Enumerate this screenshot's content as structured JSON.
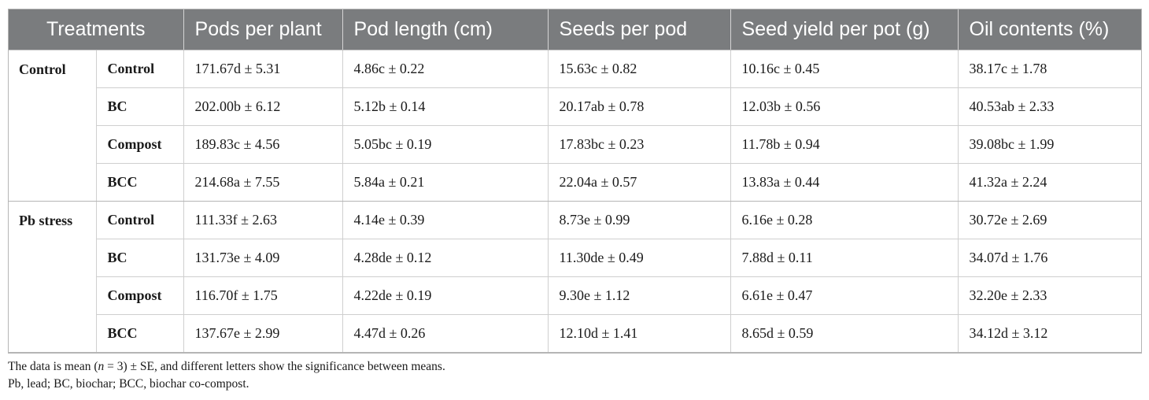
{
  "table": {
    "headers": {
      "treatments": "Treatments",
      "pods_per_plant": "Pods per plant",
      "pod_length": "Pod length (cm)",
      "seeds_per_pod": "Seeds per pod",
      "seed_yield": "Seed yield per pot (g)",
      "oil_contents": "Oil contents (%)"
    },
    "groups": [
      {
        "label": "Control",
        "rows": [
          {
            "treatment": "Control",
            "pods": "171.67d ± 5.31",
            "length": "4.86c ± 0.22",
            "seeds": "15.63c ± 0.82",
            "yield": "10.16c ± 0.45",
            "oil": "38.17c ± 1.78"
          },
          {
            "treatment": "BC",
            "pods": "202.00b ± 6.12",
            "length": "5.12b ± 0.14",
            "seeds": "20.17ab ± 0.78",
            "yield": "12.03b ± 0.56",
            "oil": "40.53ab ± 2.33"
          },
          {
            "treatment": "Compost",
            "pods": "189.83c ± 4.56",
            "length": "5.05bc ± 0.19",
            "seeds": "17.83bc ± 0.23",
            "yield": "11.78b ± 0.94",
            "oil": "39.08bc ± 1.99"
          },
          {
            "treatment": "BCC",
            "pods": "214.68a ± 7.55",
            "length": "5.84a ± 0.21",
            "seeds": "22.04a ± 0.57",
            "yield": "13.83a ± 0.44",
            "oil": "41.32a ± 2.24"
          }
        ]
      },
      {
        "label": "Pb stress",
        "rows": [
          {
            "treatment": "Control",
            "pods": "111.33f ± 2.63",
            "length": "4.14e ± 0.39",
            "seeds": "8.73e ± 0.99",
            "yield": "6.16e ± 0.28",
            "oil": "30.72e ± 2.69"
          },
          {
            "treatment": "BC",
            "pods": "131.73e ± 4.09",
            "length": "4.28de ± 0.12",
            "seeds": "11.30de ± 0.49",
            "yield": "7.88d ± 0.11",
            "oil": "34.07d ± 1.76"
          },
          {
            "treatment": "Compost",
            "pods": "116.70f ± 1.75",
            "length": "4.22de ± 0.19",
            "seeds": "9.30e ± 1.12",
            "yield": "6.61e ± 0.47",
            "oil": "32.20e ± 2.33"
          },
          {
            "treatment": "BCC",
            "pods": "137.67e ± 2.99",
            "length": "4.47d ± 0.26",
            "seeds": "12.10d ± 1.41",
            "yield": "8.65d ± 0.59",
            "oil": "34.12d ± 3.12"
          }
        ]
      }
    ]
  },
  "notes": {
    "line1_pre": "The data is mean (",
    "line1_n": "n",
    "line1_post": " = 3) ± SE, and different letters show the significance between means.",
    "line2": "Pb, lead; BC, biochar; BCC, biochar co-compost."
  },
  "colors": {
    "header_bg": "#7a7c7e",
    "header_text": "#ffffff",
    "grid_line": "#cfcfcf"
  }
}
